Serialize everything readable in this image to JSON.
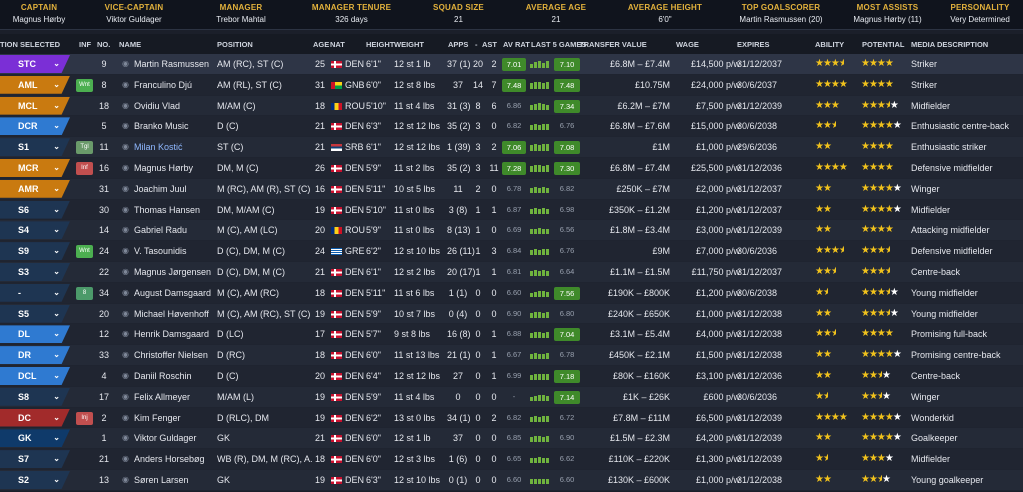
{
  "summary": [
    {
      "label": "CAPTAIN",
      "value": "Magnus Hørby"
    },
    {
      "label": "VICE-CAPTAIN",
      "value": "Viktor Guldager"
    },
    {
      "label": "MANAGER",
      "value": "Trebor Mahtal"
    },
    {
      "label": "MANAGER TENURE",
      "value": "326 days"
    },
    {
      "label": "SQUAD SIZE",
      "value": "21"
    },
    {
      "label": "AVERAGE AGE",
      "value": "21"
    },
    {
      "label": "AVERAGE HEIGHT",
      "value": "6'0\""
    },
    {
      "label": "TOP GOALSCORER",
      "value": "Martin Rasmussen (20)"
    },
    {
      "label": "MOST ASSISTS",
      "value": "Magnus Hørby (11)"
    },
    {
      "label": "PERSONALITY",
      "value": "Very Determined"
    }
  ],
  "columns": {
    "selection": "TION SELECTED",
    "inf": "INF",
    "no": "NO.",
    "name": "NAME",
    "position": "POSITION",
    "age": "AGE",
    "nat": "NAT",
    "height": "HEIGHT",
    "weight": "WEIGHT",
    "apps": "APPS",
    "gls": "-",
    "ast": "AST",
    "avrat": "AV RAT",
    "last5": "LAST 5 GAMES",
    "value": "TRANSFER VALUE",
    "wage": "WAGE",
    "expires": "EXPIRES",
    "ability": "ABILITY",
    "potential": "POTENTIAL",
    "media": "MEDIA DESCRIPTION"
  },
  "colors": {
    "striker": "#7b2fd6",
    "midfield": "#c97a10",
    "defence": "#2f7ad1",
    "keeper": "#0f3a6a",
    "sub": "#1e3552",
    "injured": "#a22b2b",
    "good_rating": "#3f8a2a",
    "star": "#f1c21c"
  },
  "players": [
    {
      "sel": "STC",
      "selc": "striker",
      "inf": "",
      "infc": "",
      "no": "9",
      "name": "Martin Rasmussen",
      "pos": "AM (RC), ST (C)",
      "age": "25",
      "flag": "DEN",
      "nat": "DEN",
      "height": "6'1\"",
      "weight": "12 st 1 lb",
      "apps": "37 (1)",
      "gls": "20",
      "ast": "2",
      "avrat": "7.01",
      "avrat_hi": true,
      "form": [
        4,
        6,
        7,
        5,
        7
      ],
      "last": "7.10",
      "last_hi": true,
      "value": "£6.8M – £7.4M",
      "wage": "£14,500 p/w",
      "expires": "31/12/2037",
      "ability": [
        3.5,
        0
      ],
      "potential": [
        4,
        0
      ],
      "media": "Striker",
      "row_sel": true
    },
    {
      "sel": "AML",
      "selc": "midfield",
      "inf": "Wnt",
      "infc": "#4caf50",
      "no": "8",
      "name": "Franculino Djú",
      "pos": "AM (RL), ST (C)",
      "age": "31",
      "flag": "GNB",
      "nat": "GNB",
      "height": "6'0\"",
      "weight": "12 st 8 lbs",
      "apps": "37",
      "gls": "14",
      "ast": "7",
      "avrat": "7.48",
      "avrat_hi": true,
      "form": [
        6,
        7,
        7,
        6,
        7
      ],
      "last": "7.48",
      "last_hi": true,
      "value": "£10.75M",
      "wage": "£24,000 p/w",
      "expires": "30/6/2037",
      "ability": [
        4,
        0
      ],
      "potential": [
        4,
        0
      ],
      "media": "Striker"
    },
    {
      "sel": "MCL",
      "selc": "midfield",
      "inf": "",
      "infc": "",
      "no": "18",
      "name": "Ovidiu Vlad",
      "pos": "M/AM (C)",
      "age": "18",
      "flag": "ROU",
      "nat": "ROU",
      "height": "5'10\"",
      "weight": "11 st 4 lbs",
      "apps": "31 (3)",
      "gls": "8",
      "ast": "6",
      "avrat": "6.86",
      "avrat_hi": false,
      "form": [
        5,
        6,
        7,
        6,
        5
      ],
      "last": "7.34",
      "last_hi": true,
      "value": "£6.2M – £7M",
      "wage": "£7,500 p/w",
      "expires": "31/12/2039",
      "ability": [
        3,
        0
      ],
      "potential": [
        3.5,
        1
      ],
      "media": "Midfielder"
    },
    {
      "sel": "DCR",
      "selc": "defence",
      "inf": "",
      "infc": "",
      "no": "5",
      "name": "Branko Music",
      "pos": "D (C)",
      "age": "21",
      "flag": "DEN",
      "nat": "DEN",
      "height": "6'3\"",
      "weight": "12 st 12 lbs",
      "apps": "35 (2)",
      "gls": "3",
      "ast": "0",
      "avrat": "6.82",
      "avrat_hi": false,
      "form": [
        5,
        6,
        5,
        6,
        6
      ],
      "last": "6.76",
      "last_hi": false,
      "value": "£6.8M – £7.6M",
      "wage": "£15,000 p/w",
      "expires": "30/6/2038",
      "ability": [
        2.5,
        0
      ],
      "potential": [
        4,
        1
      ],
      "media": "Enthusiastic centre-back"
    },
    {
      "sel": "S1",
      "selc": "sub",
      "inf": "Tgl",
      "infc": "#6a9a6a",
      "no": "11",
      "name": "Milan Kostić",
      "pos": "ST (C)",
      "age": "21",
      "flag": "SRB",
      "nat": "SRB",
      "height": "6'1\"",
      "weight": "12 st 12 lbs",
      "apps": "1 (39)",
      "gls": "3",
      "ast": "2",
      "avrat": "7.06",
      "avrat_hi": true,
      "form": [
        6,
        7,
        6,
        7,
        7
      ],
      "last": "7.08",
      "last_hi": true,
      "value": "£1M",
      "wage": "£1,000 p/w",
      "expires": "29/6/2036",
      "ability": [
        2,
        0
      ],
      "potential": [
        4,
        0
      ],
      "media": "Enthusiastic striker",
      "link": true
    },
    {
      "sel": "MCR",
      "selc": "midfield",
      "inf": "Inf",
      "infc": "#c14f4f",
      "no": "16",
      "name": "Magnus Hørby",
      "pos": "DM, M (C)",
      "age": "26",
      "flag": "DEN",
      "nat": "DEN",
      "height": "5'9\"",
      "weight": "11 st 2 lbs",
      "apps": "35 (2)",
      "gls": "3",
      "ast": "11",
      "avrat": "7.28",
      "avrat_hi": true,
      "form": [
        6,
        7,
        7,
        6,
        7
      ],
      "last": "7.30",
      "last_hi": true,
      "value": "£6.8M – £7.4M",
      "wage": "£25,500 p/w",
      "expires": "31/12/2036",
      "ability": [
        4,
        0
      ],
      "potential": [
        4,
        0
      ],
      "media": "Defensive midfielder",
      "injured": true
    },
    {
      "sel": "AMR",
      "selc": "midfield",
      "inf": "",
      "infc": "",
      "no": "31",
      "name": "Joachim Juul",
      "pos": "M (RC), AM (R), ST (C)",
      "age": "16",
      "flag": "DEN",
      "nat": "DEN",
      "height": "5'11\"",
      "weight": "10 st 5 lbs",
      "apps": "11",
      "gls": "2",
      "ast": "0",
      "avrat": "6.78",
      "avrat_hi": false,
      "form": [
        5,
        6,
        5,
        6,
        5
      ],
      "last": "6.82",
      "last_hi": false,
      "value": "£250K – £7M",
      "wage": "£2,000 p/w",
      "expires": "31/12/2037",
      "ability": [
        2,
        0
      ],
      "potential": [
        4,
        1
      ],
      "media": "Winger"
    },
    {
      "sel": "S6",
      "selc": "sub",
      "inf": "",
      "infc": "",
      "no": "30",
      "name": "Thomas Hansen",
      "pos": "DM, M/AM (C)",
      "age": "19",
      "flag": "DEN",
      "nat": "DEN",
      "height": "5'10\"",
      "weight": "11 st 0 lbs",
      "apps": "3 (8)",
      "gls": "1",
      "ast": "1",
      "avrat": "6.87",
      "avrat_hi": false,
      "form": [
        5,
        6,
        5,
        6,
        5
      ],
      "last": "6.98",
      "last_hi": false,
      "value": "£350K – £1.2M",
      "wage": "£1,200 p/w",
      "expires": "31/12/2037",
      "ability": [
        2,
        0
      ],
      "potential": [
        4,
        1
      ],
      "media": "Midfielder"
    },
    {
      "sel": "S4",
      "selc": "sub",
      "inf": "",
      "infc": "",
      "no": "14",
      "name": "Gabriel Radu",
      "pos": "M (C), AM (LC)",
      "age": "20",
      "flag": "ROU",
      "nat": "ROU",
      "height": "5'9\"",
      "weight": "11 st 0 lbs",
      "apps": "8 (13)",
      "gls": "1",
      "ast": "0",
      "avrat": "6.69",
      "avrat_hi": false,
      "form": [
        5,
        5,
        6,
        5,
        5
      ],
      "last": "6.56",
      "last_hi": false,
      "value": "£1.8M – £3.4M",
      "wage": "£3,000 p/w",
      "expires": "31/12/2039",
      "ability": [
        2,
        0
      ],
      "potential": [
        4,
        0
      ],
      "media": "Attacking midfielder"
    },
    {
      "sel": "S9",
      "selc": "sub",
      "inf": "Wnt",
      "infc": "#4caf50",
      "no": "24",
      "name": "V. Tasounidis",
      "pos": "D (C), DM, M (C)",
      "age": "24",
      "flag": "GRE",
      "nat": "GRE",
      "height": "6'2\"",
      "weight": "12 st 10 lbs",
      "apps": "26 (11)",
      "gls": "1",
      "ast": "3",
      "avrat": "6.84",
      "avrat_hi": false,
      "form": [
        5,
        6,
        5,
        6,
        6
      ],
      "last": "6.76",
      "last_hi": false,
      "value": "£9M",
      "wage": "£7,000 p/w",
      "expires": "30/6/2036",
      "ability": [
        3.5,
        0
      ],
      "potential": [
        3.5,
        0
      ],
      "media": "Defensive midfielder"
    },
    {
      "sel": "S3",
      "selc": "sub",
      "inf": "",
      "infc": "",
      "no": "22",
      "name": "Magnus Jørgensen",
      "pos": "D (C), DM, M (C)",
      "age": "21",
      "flag": "DEN",
      "nat": "DEN",
      "height": "6'1\"",
      "weight": "12 st 2 lbs",
      "apps": "20 (17)",
      "gls": "1",
      "ast": "1",
      "avrat": "6.81",
      "avrat_hi": false,
      "form": [
        5,
        6,
        5,
        6,
        5
      ],
      "last": "6.64",
      "last_hi": false,
      "value": "£1.1M – £1.5M",
      "wage": "£11,750 p/w",
      "expires": "31/12/2037",
      "ability": [
        2.5,
        0
      ],
      "potential": [
        3.5,
        0
      ],
      "media": "Centre-back"
    },
    {
      "sel": "-",
      "selc": "sub",
      "inf": "8",
      "infc": "#4c9a6a",
      "no": "34",
      "name": "August Damsgaard",
      "pos": "M (C), AM (RC)",
      "age": "18",
      "flag": "DEN",
      "nat": "DEN",
      "height": "5'11\"",
      "weight": "11 st 6 lbs",
      "apps": "1 (1)",
      "gls": "0",
      "ast": "0",
      "avrat": "6.60",
      "avrat_hi": false,
      "form": [
        4,
        5,
        6,
        6,
        5
      ],
      "last": "7.56",
      "last_hi": true,
      "value": "£190K – £800K",
      "wage": "£1,200 p/w",
      "expires": "30/6/2038",
      "ability": [
        1.5,
        0
      ],
      "potential": [
        3.5,
        1
      ],
      "media": "Young midfielder"
    },
    {
      "sel": "S5",
      "selc": "sub",
      "inf": "",
      "infc": "",
      "no": "20",
      "name": "Michael Høvenhoff",
      "pos": "M (C), AM (RC), ST (C)",
      "age": "19",
      "flag": "DEN",
      "nat": "DEN",
      "height": "5'9\"",
      "weight": "10 st 7 lbs",
      "apps": "0 (4)",
      "gls": "0",
      "ast": "0",
      "avrat": "6.90",
      "avrat_hi": false,
      "form": [
        5,
        6,
        6,
        5,
        6
      ],
      "last": "6.80",
      "last_hi": false,
      "value": "£240K – £650K",
      "wage": "£1,000 p/w",
      "expires": "31/12/2038",
      "ability": [
        2,
        0
      ],
      "potential": [
        3.5,
        1
      ],
      "media": "Young midfielder"
    },
    {
      "sel": "DL",
      "selc": "defence",
      "inf": "",
      "infc": "",
      "no": "12",
      "name": "Henrik Damsgaard",
      "pos": "D (LC)",
      "age": "17",
      "flag": "DEN",
      "nat": "DEN",
      "height": "5'7\"",
      "weight": "9 st 8 lbs",
      "apps": "16 (8)",
      "gls": "0",
      "ast": "1",
      "avrat": "6.88",
      "avrat_hi": false,
      "form": [
        5,
        6,
        6,
        5,
        6
      ],
      "last": "7.04",
      "last_hi": true,
      "value": "£3.1M – £5.4M",
      "wage": "£4,000 p/w",
      "expires": "31/12/2038",
      "ability": [
        2.5,
        0
      ],
      "potential": [
        4,
        0
      ],
      "media": "Promising full-back"
    },
    {
      "sel": "DR",
      "selc": "defence",
      "inf": "",
      "infc": "",
      "no": "33",
      "name": "Christoffer Nielsen",
      "pos": "D (RC)",
      "age": "18",
      "flag": "DEN",
      "nat": "DEN",
      "height": "6'0\"",
      "weight": "11 st 13 lbs",
      "apps": "21 (1)",
      "gls": "0",
      "ast": "1",
      "avrat": "6.67",
      "avrat_hi": false,
      "form": [
        5,
        6,
        5,
        5,
        6
      ],
      "last": "6.78",
      "last_hi": false,
      "value": "£450K – £2.1M",
      "wage": "£1,500 p/w",
      "expires": "31/12/2038",
      "ability": [
        2,
        0
      ],
      "potential": [
        4,
        1
      ],
      "media": "Promising centre-back"
    },
    {
      "sel": "DCL",
      "selc": "defence",
      "inf": "",
      "infc": "",
      "no": "4",
      "name": "Daniil Roschin",
      "pos": "D (C)",
      "age": "20",
      "flag": "DEN",
      "nat": "DEN",
      "height": "6'4\"",
      "weight": "12 st 12 lbs",
      "apps": "27",
      "gls": "0",
      "ast": "1",
      "avrat": "6.99",
      "avrat_hi": false,
      "form": [
        5,
        6,
        6,
        6,
        6
      ],
      "last": "7.18",
      "last_hi": true,
      "value": "£80K – £160K",
      "wage": "£3,100 p/w",
      "expires": "31/12/2036",
      "ability": [
        2,
        0
      ],
      "potential": [
        2.5,
        1
      ],
      "media": "Centre-back"
    },
    {
      "sel": "S8",
      "selc": "sub",
      "inf": "",
      "infc": "",
      "no": "17",
      "name": "Felix Allmeyer",
      "pos": "M/AM (L)",
      "age": "19",
      "flag": "DEN",
      "nat": "DEN",
      "height": "5'9\"",
      "weight": "11 st 4 lbs",
      "apps": "0",
      "gls": "0",
      "ast": "0",
      "avrat": "-",
      "avrat_hi": false,
      "form": [
        4,
        5,
        6,
        6,
        5
      ],
      "last": "7.14",
      "last_hi": true,
      "value": "£1K – £26K",
      "wage": "£600 p/w",
      "expires": "30/6/2036",
      "ability": [
        1.5,
        0
      ],
      "potential": [
        2.5,
        1
      ],
      "media": "Winger"
    },
    {
      "sel": "DC",
      "selc": "injured",
      "inf": "Inj",
      "infc": "#c14f4f",
      "no": "2",
      "name": "Kim Fenger",
      "pos": "D (RLC), DM",
      "age": "19",
      "flag": "DEN",
      "nat": "DEN",
      "height": "6'2\"",
      "weight": "13 st 0 lbs",
      "apps": "34 (1)",
      "gls": "0",
      "ast": "2",
      "avrat": "6.82",
      "avrat_hi": false,
      "form": [
        5,
        6,
        5,
        6,
        6
      ],
      "last": "6.72",
      "last_hi": false,
      "value": "£7.8M – £11M",
      "wage": "£6,500 p/w",
      "expires": "31/12/2039",
      "ability": [
        4,
        0
      ],
      "potential": [
        4,
        1
      ],
      "media": "Wonderkid"
    },
    {
      "sel": "GK",
      "selc": "keeper",
      "inf": "",
      "infc": "",
      "no": "1",
      "name": "Viktor Guldager",
      "pos": "GK",
      "age": "21",
      "flag": "DEN",
      "nat": "DEN",
      "height": "6'0\"",
      "weight": "12 st 1 lb",
      "apps": "37",
      "gls": "0",
      "ast": "0",
      "avrat": "6.85",
      "avrat_hi": false,
      "form": [
        5,
        6,
        6,
        5,
        6
      ],
      "last": "6.90",
      "last_hi": false,
      "value": "£1.5M – £2.3M",
      "wage": "£4,200 p/w",
      "expires": "31/12/2039",
      "ability": [
        2,
        0
      ],
      "potential": [
        4,
        1
      ],
      "media": "Goalkeeper"
    },
    {
      "sel": "S7",
      "selc": "sub",
      "inf": "",
      "infc": "",
      "no": "21",
      "name": "Anders Horsebøg",
      "pos": "WB (R), DM, M (RC), A...",
      "age": "18",
      "flag": "DEN",
      "nat": "DEN",
      "height": "6'0\"",
      "weight": "12 st 3 lbs",
      "apps": "1 (6)",
      "gls": "0",
      "ast": "0",
      "avrat": "6.65",
      "avrat_hi": false,
      "form": [
        5,
        5,
        6,
        5,
        5
      ],
      "last": "6.62",
      "last_hi": false,
      "value": "£110K – £220K",
      "wage": "£1,300 p/w",
      "expires": "31/12/2039",
      "ability": [
        1.5,
        0
      ],
      "potential": [
        3,
        1
      ],
      "media": "Midfielder"
    },
    {
      "sel": "S2",
      "selc": "sub",
      "inf": "",
      "infc": "",
      "no": "13",
      "name": "Søren Larsen",
      "pos": "GK",
      "age": "19",
      "flag": "DEN",
      "nat": "DEN",
      "height": "6'3\"",
      "weight": "12 st 10 lbs",
      "apps": "0 (1)",
      "gls": "0",
      "ast": "0",
      "avrat": "6.60",
      "avrat_hi": false,
      "form": [
        5,
        5,
        5,
        5,
        5
      ],
      "last": "6.60",
      "last_hi": false,
      "value": "£130K – £600K",
      "wage": "£1,000 p/w",
      "expires": "31/12/2038",
      "ability": [
        2,
        0
      ],
      "potential": [
        2.5,
        1
      ],
      "media": "Young goalkeeper"
    }
  ]
}
